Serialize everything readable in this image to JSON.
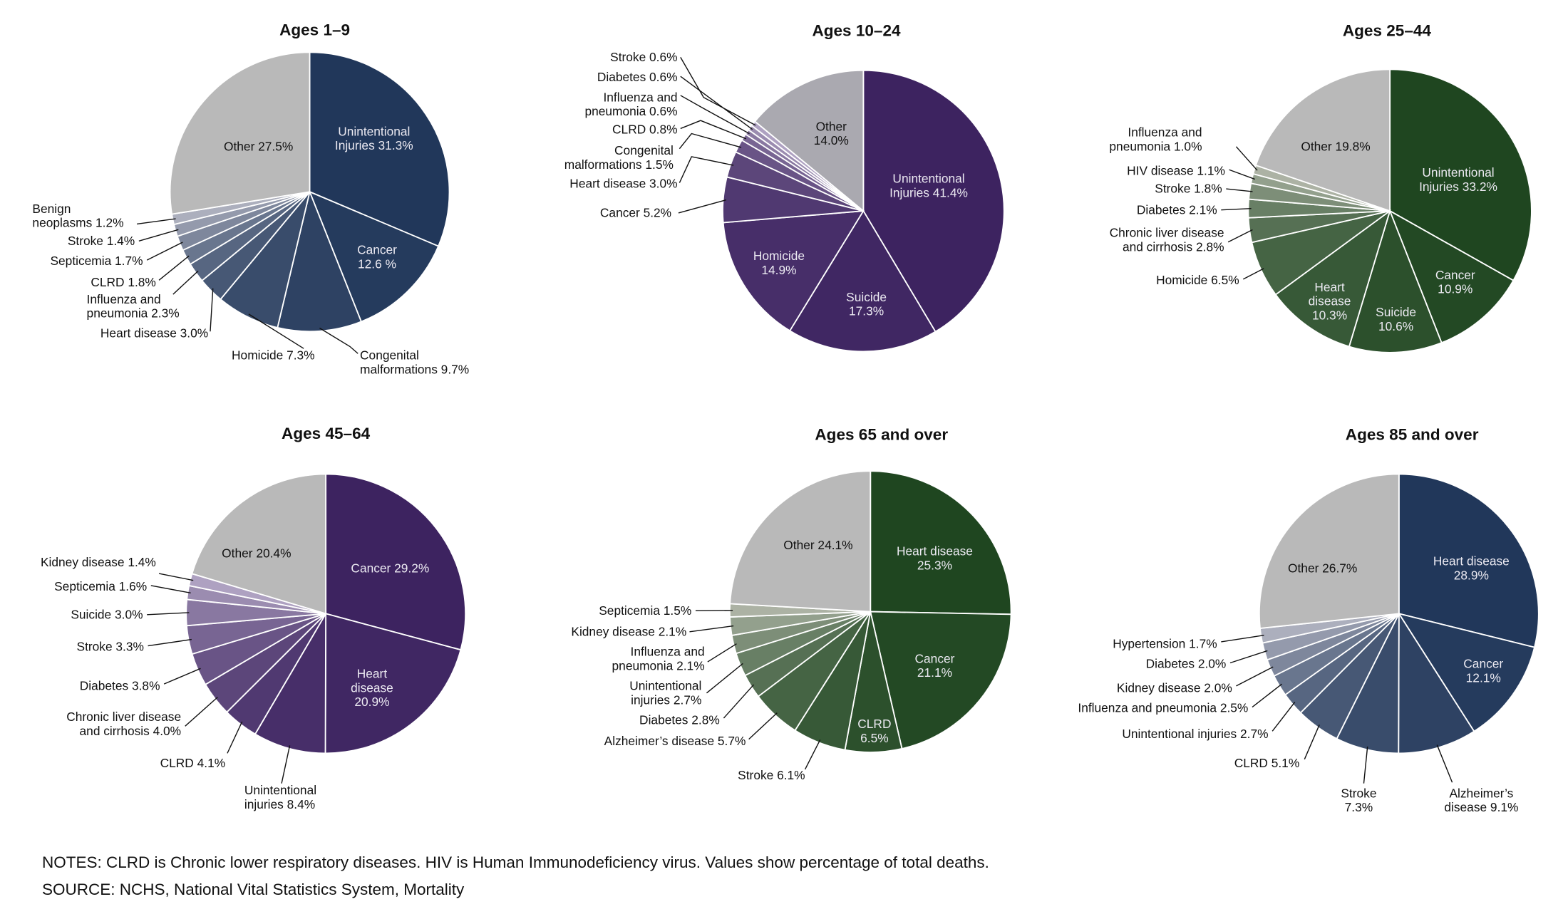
{
  "notes": "NOTES: CLRD is Chronic lower respiratory diseases. HIV is Human Immunodeficiency virus. Values show percentage of total deaths.",
  "source": "SOURCE: NCHS, National Vital Statistics System, Mortality",
  "chart_data": [
    {
      "type": "pie",
      "title": "Ages 1–9",
      "colors": {
        "base": "#21375a",
        "light": "#b3b5c2",
        "other": "#b9b9b9"
      },
      "slices": [
        {
          "value": 31.3,
          "label": [
            "Unintentional",
            "Injuries 31.3%"
          ]
        },
        {
          "value": 12.6,
          "label": [
            "Cancer",
            "12.6 %"
          ]
        },
        {
          "value": 9.7,
          "label": [
            "Congenital",
            "malformations 9.7%"
          ]
        },
        {
          "value": 7.3,
          "label": [
            "Homicide 7.3%"
          ]
        },
        {
          "value": 3.0,
          "label": [
            "Heart disease 3.0%"
          ]
        },
        {
          "value": 2.3,
          "label": [
            "Influenza and",
            "pneumonia 2.3%"
          ]
        },
        {
          "value": 1.8,
          "label": [
            "CLRD 1.8%"
          ]
        },
        {
          "value": 1.7,
          "label": [
            "Septicemia 1.7%"
          ]
        },
        {
          "value": 1.4,
          "label": [
            "Stroke 1.4%"
          ]
        },
        {
          "value": 1.2,
          "label": [
            "Benign",
            "neoplasms 1.2%"
          ]
        },
        {
          "value": 27.5,
          "label": [
            "Other 27.5%"
          ],
          "other": true
        }
      ]
    },
    {
      "type": "pie",
      "title": "Ages 10–24",
      "colors": {
        "base": "#3d2360",
        "light": "#b4a8c6",
        "other": "#aaa9b0"
      },
      "slices": [
        {
          "value": 41.4,
          "label": [
            "Unintentional",
            "Injuries 41.4%"
          ]
        },
        {
          "value": 17.3,
          "label": [
            "Suicide",
            "17.3%"
          ]
        },
        {
          "value": 14.9,
          "label": [
            "Homicide",
            "14.9%"
          ]
        },
        {
          "value": 5.2,
          "label": [
            "Cancer 5.2%"
          ]
        },
        {
          "value": 3.0,
          "label": [
            "Heart disease 3.0%"
          ]
        },
        {
          "value": 1.5,
          "label": [
            "Congenital",
            "malformations 1.5%"
          ]
        },
        {
          "value": 0.8,
          "label": [
            "CLRD 0.8%"
          ]
        },
        {
          "value": 0.6,
          "label": [
            "Influenza and",
            "pneumonia 0.6%"
          ]
        },
        {
          "value": 0.6,
          "label": [
            "Diabetes 0.6%"
          ]
        },
        {
          "value": 0.6,
          "label": [
            "Stroke 0.6%"
          ]
        },
        {
          "value": 14.0,
          "label": [
            "Other",
            "14.0%"
          ],
          "other": true
        }
      ]
    },
    {
      "type": "pie",
      "title": "Ages 25–44",
      "colors": {
        "base": "#1f4620",
        "light": "#b3b8ab",
        "other": "#b9b9b9"
      },
      "slices": [
        {
          "value": 33.2,
          "label": [
            "Unintentional",
            "Injuries 33.2%"
          ]
        },
        {
          "value": 10.9,
          "label": [
            "Cancer",
            "10.9%"
          ]
        },
        {
          "value": 10.6,
          "label": [
            "Suicide",
            "10.6%"
          ]
        },
        {
          "value": 10.3,
          "label": [
            "Heart",
            "disease",
            "10.3%"
          ]
        },
        {
          "value": 6.5,
          "label": [
            "Homicide 6.5%"
          ]
        },
        {
          "value": 2.8,
          "label": [
            "Chronic liver disease",
            "and cirrhosis 2.8%"
          ]
        },
        {
          "value": 2.1,
          "label": [
            "Diabetes 2.1%"
          ]
        },
        {
          "value": 1.8,
          "label": [
            "Stroke 1.8%"
          ]
        },
        {
          "value": 1.1,
          "label": [
            "HIV disease 1.1%"
          ]
        },
        {
          "value": 1.0,
          "label": [
            "Influenza and",
            "pneumonia 1.0%"
          ]
        },
        {
          "value": 19.8,
          "label": [
            "Other 19.8%"
          ],
          "other": true
        }
      ]
    },
    {
      "type": "pie",
      "title": "Ages 45–64",
      "colors": {
        "base": "#3d2360",
        "light": "#b4a8c6",
        "other": "#b9b9b9"
      },
      "slices": [
        {
          "value": 29.2,
          "label": [
            "Cancer 29.2%"
          ]
        },
        {
          "value": 20.9,
          "label": [
            "Heart",
            "disease",
            "20.9%"
          ]
        },
        {
          "value": 8.4,
          "label": [
            "Unintentional",
            "injuries 8.4%"
          ]
        },
        {
          "value": 4.1,
          "label": [
            "CLRD 4.1%"
          ]
        },
        {
          "value": 4.0,
          "label": [
            "Chronic liver disease",
            "and cirrhosis 4.0%"
          ]
        },
        {
          "value": 3.8,
          "label": [
            "Diabetes 3.8%"
          ]
        },
        {
          "value": 3.3,
          "label": [
            "Stroke 3.3%"
          ]
        },
        {
          "value": 3.0,
          "label": [
            "Suicide 3.0%"
          ]
        },
        {
          "value": 1.6,
          "label": [
            "Septicemia 1.6%"
          ]
        },
        {
          "value": 1.4,
          "label": [
            "Kidney disease 1.4%"
          ]
        },
        {
          "value": 20.4,
          "label": [
            "Other 20.4%"
          ],
          "other": true
        }
      ]
    },
    {
      "type": "pie",
      "title": "Ages 65 and over",
      "colors": {
        "base": "#1f4620",
        "light": "#b3b8ab",
        "other": "#b9b9b9"
      },
      "slices": [
        {
          "value": 25.3,
          "label": [
            "Heart disease",
            "25.3%"
          ]
        },
        {
          "value": 21.1,
          "label": [
            "Cancer",
            "21.1%"
          ]
        },
        {
          "value": 6.5,
          "label": [
            "CLRD",
            "6.5%"
          ]
        },
        {
          "value": 6.1,
          "label": [
            "Stroke 6.1%"
          ]
        },
        {
          "value": 5.7,
          "label": [
            "Alzheimer’s disease 5.7%"
          ]
        },
        {
          "value": 2.8,
          "label": [
            "Diabetes 2.8%"
          ]
        },
        {
          "value": 2.7,
          "label": [
            "Unintentional",
            "injuries 2.7%"
          ]
        },
        {
          "value": 2.1,
          "label": [
            "Influenza and",
            "pneumonia 2.1%"
          ]
        },
        {
          "value": 2.1,
          "label": [
            "Kidney disease 2.1%"
          ]
        },
        {
          "value": 1.5,
          "label": [
            "Septicemia 1.5%"
          ]
        },
        {
          "value": 24.1,
          "label": [
            "Other 24.1%"
          ],
          "other": true
        }
      ]
    },
    {
      "type": "pie",
      "title": "Ages 85 and over",
      "colors": {
        "base": "#21375a",
        "light": "#b3b5c2",
        "other": "#b9b9b9"
      },
      "slices": [
        {
          "value": 28.9,
          "label": [
            "Heart disease",
            "28.9%"
          ]
        },
        {
          "value": 12.1,
          "label": [
            "Cancer",
            "12.1%"
          ]
        },
        {
          "value": 9.1,
          "label": [
            "Alzheimer’s",
            "disease 9.1%"
          ]
        },
        {
          "value": 7.3,
          "label": [
            "Stroke",
            "7.3%"
          ]
        },
        {
          "value": 5.1,
          "label": [
            "CLRD 5.1%"
          ]
        },
        {
          "value": 2.7,
          "label": [
            "Unintentional injuries 2.7%"
          ]
        },
        {
          "value": 2.5,
          "label": [
            "Influenza and pneumonia 2.5%"
          ]
        },
        {
          "value": 2.0,
          "label": [
            "Kidney disease 2.0%"
          ]
        },
        {
          "value": 2.0,
          "label": [
            "Diabetes 2.0%"
          ]
        },
        {
          "value": 1.7,
          "label": [
            "Hypertension 1.7%"
          ]
        },
        {
          "value": 26.7,
          "label": [
            "Other 26.7%"
          ],
          "other": true
        }
      ]
    }
  ]
}
